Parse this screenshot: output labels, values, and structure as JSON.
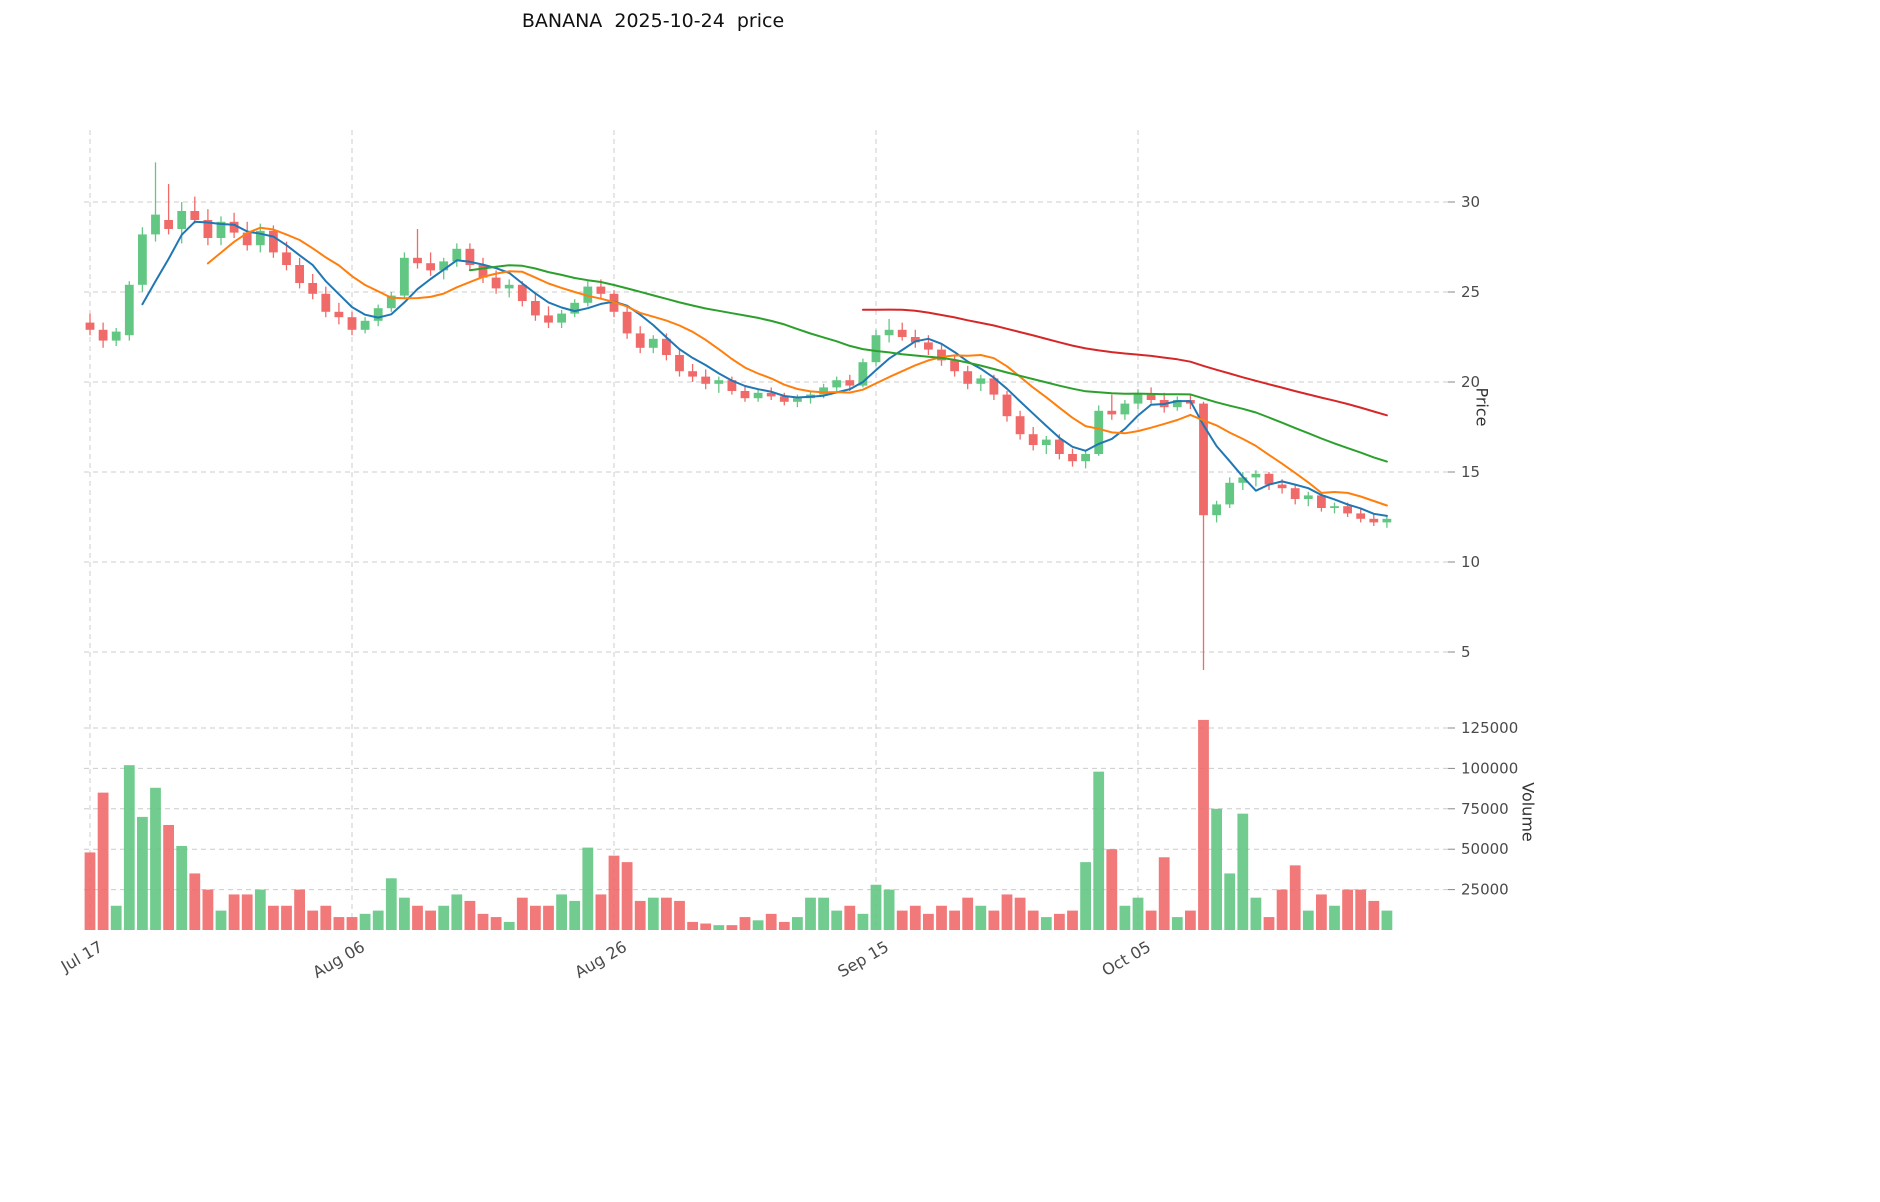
{
  "title": "BANANA  2025-10-24  price",
  "chart_data": {
    "type": "candlestick",
    "title": "BANANA  2025-10-24  price",
    "ticker": "BANANA",
    "as_of_date": "2025-10-24",
    "start_date": "2025-07-17",
    "end_date": "2025-10-24",
    "x_ticks": [
      {
        "index": 0,
        "label": "Jul 17"
      },
      {
        "index": 20,
        "label": "Aug 06"
      },
      {
        "index": 40,
        "label": "Aug 26"
      },
      {
        "index": 60,
        "label": "Sep 15"
      },
      {
        "index": 80,
        "label": "Oct 05"
      }
    ],
    "price_axis": {
      "label": "Price",
      "ticks": [
        5,
        10,
        15,
        20,
        25,
        30
      ],
      "range": [
        3,
        34.5
      ]
    },
    "volume_axis": {
      "label": "Volume",
      "ticks": [
        25000,
        50000,
        75000,
        100000,
        125000
      ],
      "range": [
        0,
        140000
      ]
    },
    "legend_position": "none",
    "grid": true,
    "moving_averages": [
      {
        "window": 5,
        "color": "#1f77b4"
      },
      {
        "window": 10,
        "color": "#ff7f0e"
      },
      {
        "window": 30,
        "color": "#2ca02c"
      },
      {
        "window": 60,
        "color": "#d62728"
      }
    ],
    "colors": {
      "up": "#63c784",
      "down": "#f16a6a",
      "grid": "#cccccc",
      "tick_text": "#4a4a4a",
      "background": "#ffffff"
    },
    "ohlcv_columns": [
      "open",
      "high",
      "low",
      "close",
      "volume"
    ],
    "ohlcv": [
      [
        23.3,
        23.8,
        22.6,
        22.9,
        48000
      ],
      [
        22.9,
        23.3,
        21.9,
        22.3,
        85000
      ],
      [
        22.3,
        23.0,
        22.0,
        22.8,
        15000
      ],
      [
        22.6,
        25.6,
        22.3,
        25.4,
        102000
      ],
      [
        25.4,
        28.6,
        25.0,
        28.2,
        70000
      ],
      [
        28.2,
        32.2,
        27.8,
        29.3,
        88000
      ],
      [
        29.0,
        31.0,
        28.2,
        28.5,
        65000
      ],
      [
        28.5,
        30.0,
        27.7,
        29.5,
        52000
      ],
      [
        29.5,
        30.3,
        28.8,
        29.0,
        35000
      ],
      [
        29.0,
        29.6,
        27.6,
        28.0,
        25000
      ],
      [
        28.0,
        29.2,
        27.6,
        28.9,
        12000
      ],
      [
        28.9,
        29.4,
        28.0,
        28.3,
        22000
      ],
      [
        28.3,
        28.9,
        27.3,
        27.6,
        22000
      ],
      [
        27.6,
        28.8,
        27.2,
        28.4,
        25000
      ],
      [
        28.4,
        28.7,
        26.9,
        27.2,
        15000
      ],
      [
        27.2,
        27.8,
        26.2,
        26.5,
        15000
      ],
      [
        26.5,
        26.9,
        25.2,
        25.5,
        25000
      ],
      [
        25.5,
        26.0,
        24.6,
        24.9,
        12000
      ],
      [
        24.9,
        25.3,
        23.6,
        23.9,
        15000
      ],
      [
        23.9,
        24.4,
        23.2,
        23.6,
        8000
      ],
      [
        23.6,
        23.9,
        22.6,
        22.9,
        8000
      ],
      [
        22.9,
        23.6,
        22.7,
        23.4,
        10000
      ],
      [
        23.4,
        24.3,
        23.1,
        24.1,
        12000
      ],
      [
        24.1,
        25.0,
        23.9,
        24.8,
        32000
      ],
      [
        24.8,
        27.2,
        24.6,
        26.9,
        20000
      ],
      [
        26.9,
        28.5,
        26.3,
        26.6,
        15000
      ],
      [
        26.6,
        27.2,
        25.9,
        26.2,
        12000
      ],
      [
        26.2,
        26.9,
        25.7,
        26.7,
        15000
      ],
      [
        26.7,
        27.7,
        26.4,
        27.4,
        22000
      ],
      [
        27.4,
        27.7,
        26.2,
        26.5,
        18000
      ],
      [
        26.5,
        26.9,
        25.5,
        25.8,
        10000
      ],
      [
        25.8,
        26.2,
        24.9,
        25.2,
        8000
      ],
      [
        25.2,
        25.7,
        24.7,
        25.4,
        5000
      ],
      [
        25.4,
        25.6,
        24.2,
        24.5,
        20000
      ],
      [
        24.5,
        24.9,
        23.4,
        23.7,
        15000
      ],
      [
        23.7,
        24.2,
        23.0,
        23.3,
        15000
      ],
      [
        23.3,
        24.0,
        23.0,
        23.8,
        22000
      ],
      [
        23.8,
        24.6,
        23.6,
        24.4,
        18000
      ],
      [
        24.4,
        25.6,
        24.2,
        25.3,
        51000
      ],
      [
        25.3,
        25.7,
        24.6,
        24.9,
        22000
      ],
      [
        24.9,
        25.1,
        23.6,
        23.9,
        46000
      ],
      [
        23.9,
        24.2,
        22.4,
        22.7,
        42000
      ],
      [
        22.7,
        23.1,
        21.6,
        21.9,
        18000
      ],
      [
        21.9,
        22.6,
        21.6,
        22.4,
        20000
      ],
      [
        22.4,
        22.7,
        21.2,
        21.5,
        20000
      ],
      [
        21.5,
        21.8,
        20.3,
        20.6,
        18000
      ],
      [
        20.6,
        21.0,
        20.0,
        20.3,
        5000
      ],
      [
        20.3,
        20.7,
        19.6,
        19.9,
        4000
      ],
      [
        19.9,
        20.3,
        19.4,
        20.1,
        3000
      ],
      [
        20.1,
        20.3,
        19.3,
        19.5,
        3000
      ],
      [
        19.5,
        19.8,
        18.9,
        19.1,
        8000
      ],
      [
        19.1,
        19.6,
        18.9,
        19.4,
        6000
      ],
      [
        19.4,
        19.7,
        19.0,
        19.2,
        10000
      ],
      [
        19.2,
        19.4,
        18.7,
        18.9,
        5000
      ],
      [
        18.9,
        19.3,
        18.6,
        19.1,
        8000
      ],
      [
        19.1,
        19.5,
        18.8,
        19.3,
        20000
      ],
      [
        19.3,
        19.9,
        19.1,
        19.7,
        20000
      ],
      [
        19.7,
        20.3,
        19.4,
        20.1,
        12000
      ],
      [
        20.1,
        20.4,
        19.5,
        19.8,
        15000
      ],
      [
        19.8,
        21.3,
        19.7,
        21.1,
        10000
      ],
      [
        21.1,
        22.9,
        20.9,
        22.6,
        28000
      ],
      [
        22.6,
        23.5,
        22.2,
        22.9,
        25000
      ],
      [
        22.9,
        23.3,
        22.3,
        22.5,
        12000
      ],
      [
        22.5,
        22.9,
        21.9,
        22.2,
        15000
      ],
      [
        22.2,
        22.6,
        21.5,
        21.8,
        10000
      ],
      [
        21.8,
        22.1,
        20.9,
        21.2,
        15000
      ],
      [
        21.2,
        21.5,
        20.3,
        20.6,
        12000
      ],
      [
        20.6,
        20.9,
        19.6,
        19.9,
        20000
      ],
      [
        19.9,
        20.4,
        19.5,
        20.2,
        15000
      ],
      [
        20.2,
        20.4,
        19.0,
        19.3,
        12000
      ],
      [
        19.3,
        19.5,
        17.8,
        18.1,
        22000
      ],
      [
        18.1,
        18.4,
        16.8,
        17.1,
        20000
      ],
      [
        17.1,
        17.5,
        16.2,
        16.5,
        12000
      ],
      [
        16.5,
        17.0,
        16.0,
        16.8,
        8000
      ],
      [
        16.8,
        17.1,
        15.7,
        16.0,
        10000
      ],
      [
        16.0,
        16.3,
        15.3,
        15.6,
        12000
      ],
      [
        15.6,
        16.2,
        15.2,
        16.0,
        42000
      ],
      [
        16.0,
        18.7,
        15.9,
        18.4,
        98000
      ],
      [
        18.4,
        19.3,
        17.9,
        18.2,
        50000
      ],
      [
        18.2,
        19.0,
        17.9,
        18.8,
        15000
      ],
      [
        18.8,
        19.6,
        18.5,
        19.3,
        20000
      ],
      [
        19.3,
        19.7,
        18.8,
        19.0,
        12000
      ],
      [
        19.0,
        19.4,
        18.3,
        18.6,
        45000
      ],
      [
        18.6,
        19.2,
        18.4,
        19.0,
        8000
      ],
      [
        19.0,
        19.3,
        18.5,
        18.8,
        12000
      ],
      [
        18.8,
        18.9,
        4.0,
        12.6,
        130000
      ],
      [
        12.6,
        13.4,
        12.2,
        13.2,
        75000
      ],
      [
        13.2,
        14.7,
        13.0,
        14.4,
        35000
      ],
      [
        14.4,
        15.0,
        14.0,
        14.7,
        72000
      ],
      [
        14.7,
        15.1,
        14.2,
        14.9,
        20000
      ],
      [
        14.9,
        15.0,
        14.0,
        14.3,
        8000
      ],
      [
        14.3,
        14.6,
        13.8,
        14.1,
        25000
      ],
      [
        14.1,
        14.3,
        13.2,
        13.5,
        40000
      ],
      [
        13.5,
        13.9,
        13.1,
        13.7,
        12000
      ],
      [
        13.7,
        13.9,
        12.8,
        13.0,
        22000
      ],
      [
        13.0,
        13.3,
        12.7,
        13.1,
        15000
      ],
      [
        13.1,
        13.3,
        12.5,
        12.7,
        25000
      ],
      [
        12.7,
        13.0,
        12.2,
        12.4,
        25000
      ],
      [
        12.4,
        12.7,
        12.0,
        12.2,
        18000
      ],
      [
        12.2,
        12.6,
        11.9,
        12.4,
        12000
      ]
    ]
  }
}
